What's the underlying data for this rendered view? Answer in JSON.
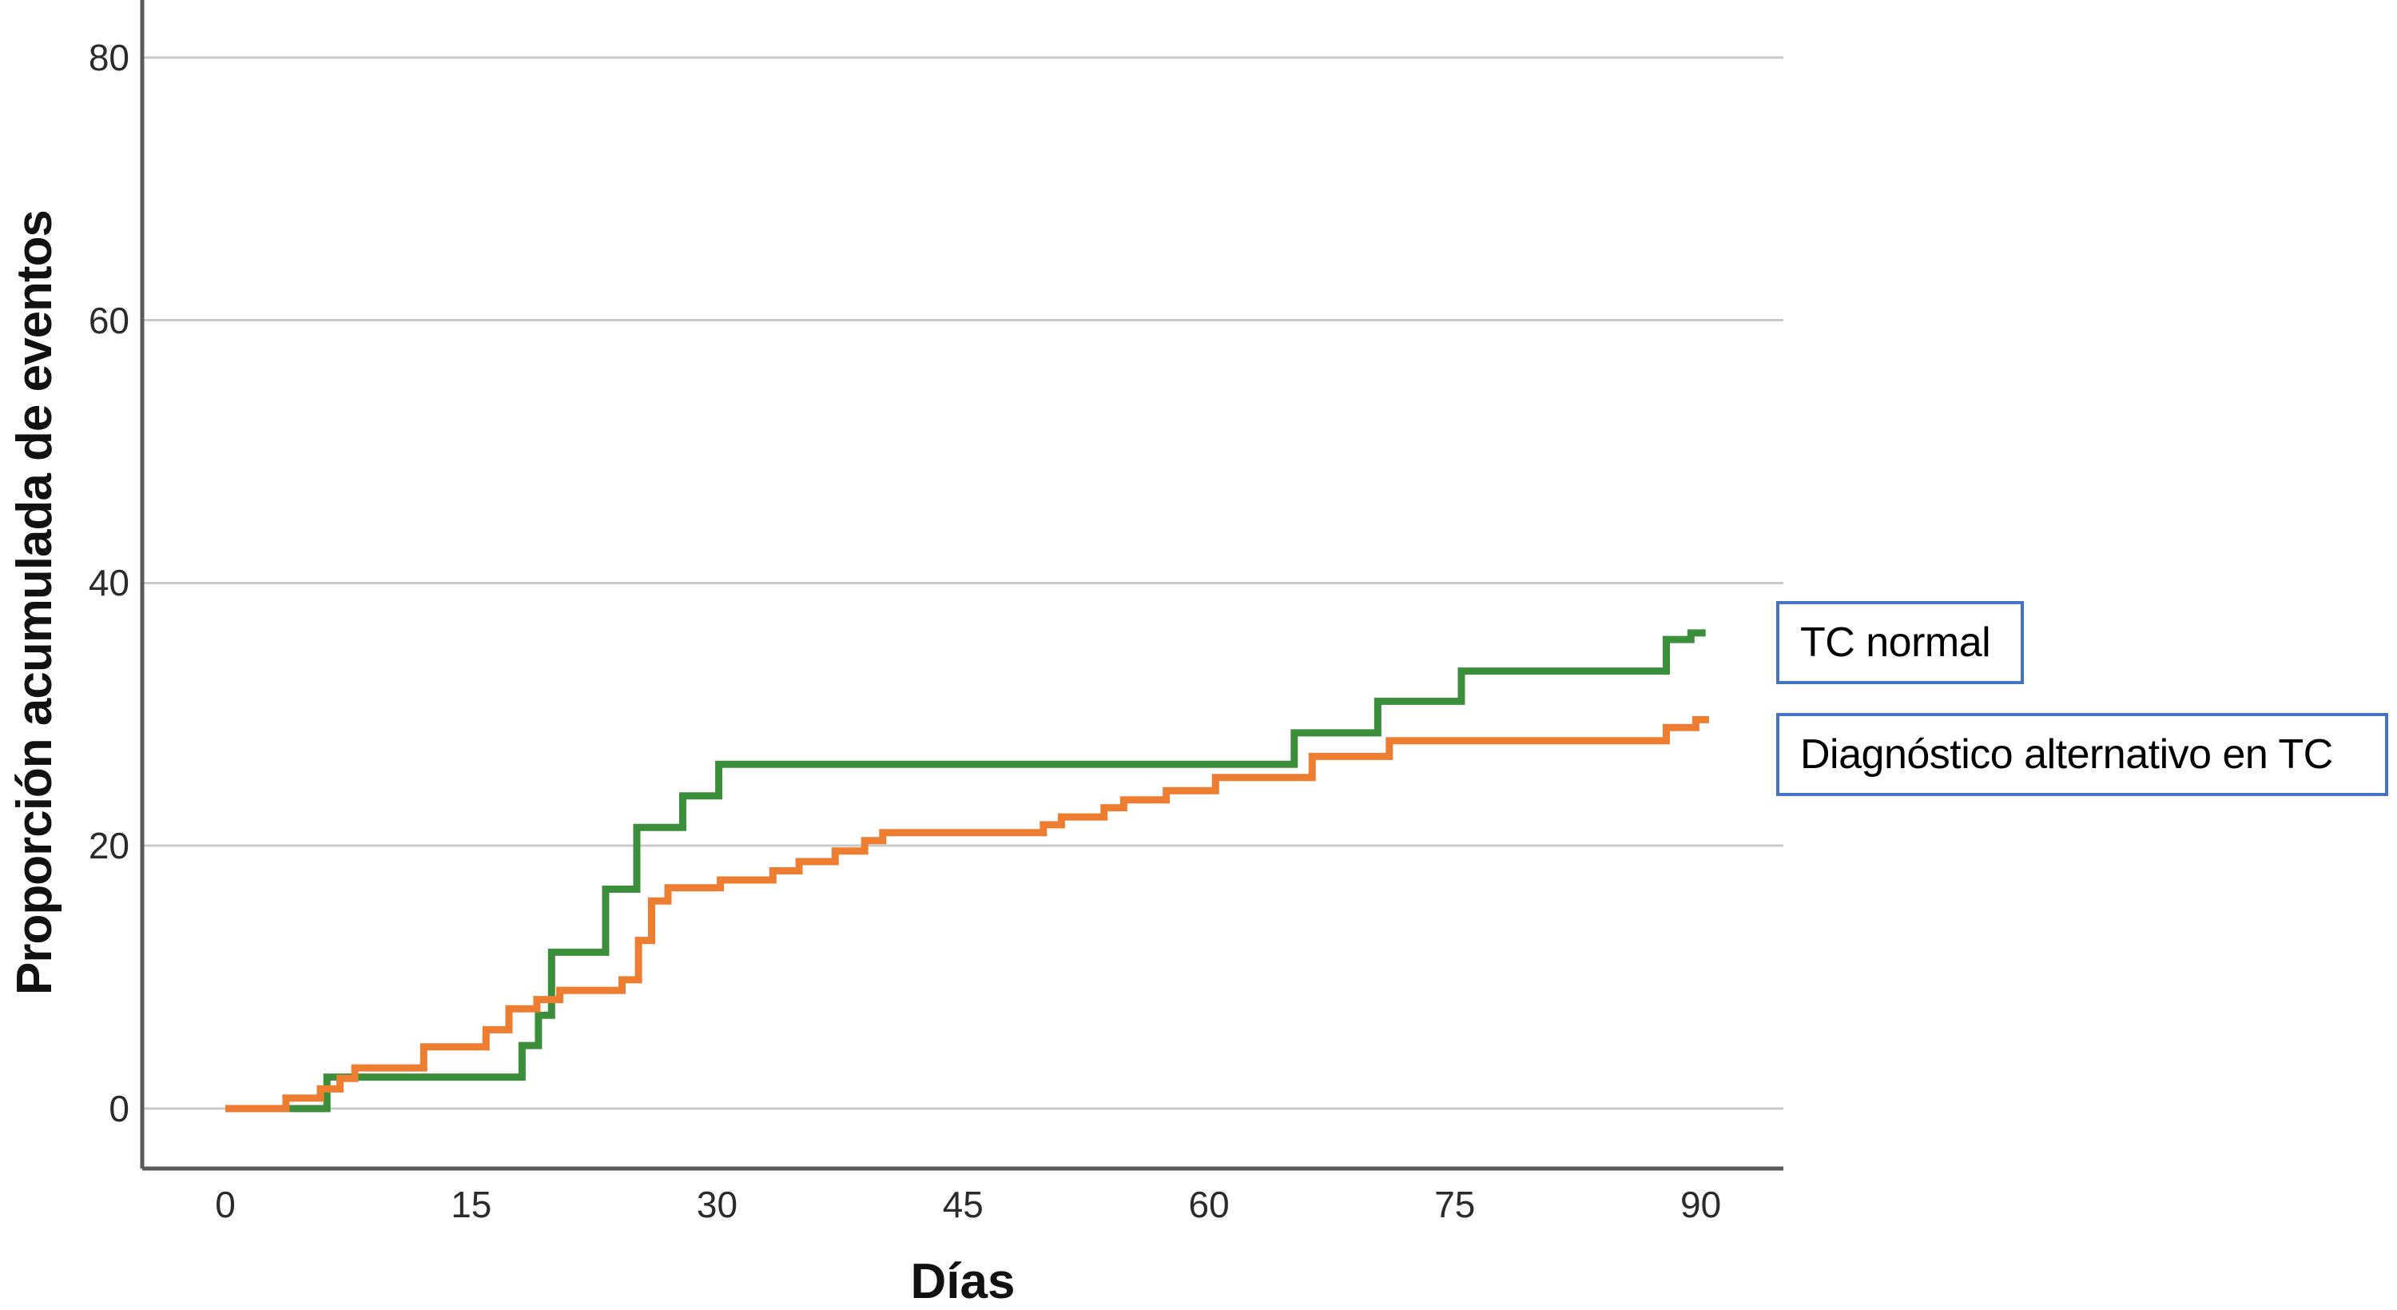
{
  "page": {
    "background": "#ffffff",
    "description": "Cumulative incidence step chart (Kaplan-Meier style) comparing two groups over 90 days"
  },
  "colors": {
    "series_green": "#3c8f3a",
    "series_orange": "#ed7d31",
    "legend_border": "#4472c4",
    "gridline": "#c9c9c9",
    "axis_line": "#5a5a5a",
    "tick_text": "#2b2b2b",
    "title_text": "#111111"
  },
  "legend": {
    "items": [
      {
        "label": "TC normal"
      },
      {
        "label": "Diagnóstico alternativo en TC"
      }
    ],
    "border_color": "#4472c4"
  },
  "chart_data": {
    "type": "line",
    "step_style": "post",
    "title": "",
    "xlabel": "Días",
    "ylabel": "Proporción acumulada de eventos",
    "x_tick_labels": [
      "0",
      "15",
      "30",
      "45",
      "60",
      "75",
      "90"
    ],
    "x_tick_values": [
      0,
      15,
      30,
      45,
      60,
      75,
      90
    ],
    "y_tick_labels": [
      "0",
      "20",
      "40",
      "60",
      "80"
    ],
    "y_tick_values": [
      0,
      20,
      40,
      60,
      80
    ],
    "xlim": [
      -5.07,
      95.04
    ],
    "ylim": [
      -4.56,
      84.37
    ],
    "grid": "horizontal-only",
    "legend_position": "outside-right",
    "series": [
      {
        "name": "TC normal",
        "color": "#3c8f3a",
        "end_day": 90.3,
        "steps": [
          [
            0,
            0
          ],
          [
            6.2,
            2.4
          ],
          [
            18.1,
            4.8
          ],
          [
            19.1,
            7.1
          ],
          [
            19.9,
            11.9
          ],
          [
            23.2,
            16.7
          ],
          [
            25.1,
            21.4
          ],
          [
            27.9,
            23.8
          ],
          [
            30.1,
            26.2
          ],
          [
            65.2,
            28.6
          ],
          [
            70.3,
            31.0
          ],
          [
            75.4,
            33.3
          ],
          [
            87.9,
            35.7
          ],
          [
            89.4,
            36.2
          ]
        ]
      },
      {
        "name": "Diagnóstico alternativo en TC",
        "color": "#ed7d31",
        "end_day": 90.5,
        "steps": [
          [
            0,
            0
          ],
          [
            3.7,
            0.8
          ],
          [
            5.8,
            1.5
          ],
          [
            7.0,
            2.3
          ],
          [
            7.9,
            3.1
          ],
          [
            12.1,
            4.7
          ],
          [
            15.9,
            6.0
          ],
          [
            17.3,
            7.6
          ],
          [
            19.0,
            8.3
          ],
          [
            20.4,
            9.0
          ],
          [
            24.2,
            9.8
          ],
          [
            25.2,
            12.8
          ],
          [
            26.0,
            15.8
          ],
          [
            27.0,
            16.8
          ],
          [
            30.2,
            17.4
          ],
          [
            33.4,
            18.1
          ],
          [
            35.0,
            18.8
          ],
          [
            37.2,
            19.6
          ],
          [
            39.0,
            20.4
          ],
          [
            40.1,
            21.0
          ],
          [
            49.9,
            21.6
          ],
          [
            51.0,
            22.2
          ],
          [
            53.6,
            22.9
          ],
          [
            54.8,
            23.5
          ],
          [
            57.4,
            24.2
          ],
          [
            60.4,
            25.2
          ],
          [
            66.3,
            26.8
          ],
          [
            71.0,
            28.0
          ],
          [
            87.9,
            29.0
          ],
          [
            89.7,
            29.6
          ]
        ]
      }
    ]
  }
}
